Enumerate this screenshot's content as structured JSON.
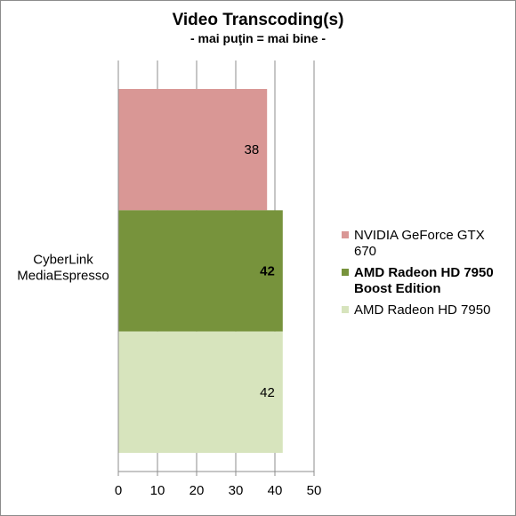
{
  "chart_data": {
    "type": "bar",
    "orientation": "horizontal",
    "title": "Video Transcoding(s)",
    "subtitle": "- mai puţin = mai bine -",
    "categories": [
      "CyberLink\nMediaEspresso"
    ],
    "xlim": [
      0,
      50
    ],
    "x_ticks": [
      "0",
      "10",
      "20",
      "30",
      "40",
      "50"
    ],
    "grid": true,
    "legend_position": "right",
    "series": [
      {
        "name": "NVIDIA GeForce GTX 670",
        "values": [
          38
        ],
        "label": "38",
        "color": "#d99795",
        "bold": false
      },
      {
        "name": "AMD Radeon HD 7950 Boost Edition",
        "values": [
          42
        ],
        "label": "42",
        "color": "#77933c",
        "bold": true
      },
      {
        "name": "AMD Radeon HD 7950",
        "values": [
          42
        ],
        "label": "42",
        "color": "#d7e4bd",
        "bold": false
      }
    ]
  }
}
